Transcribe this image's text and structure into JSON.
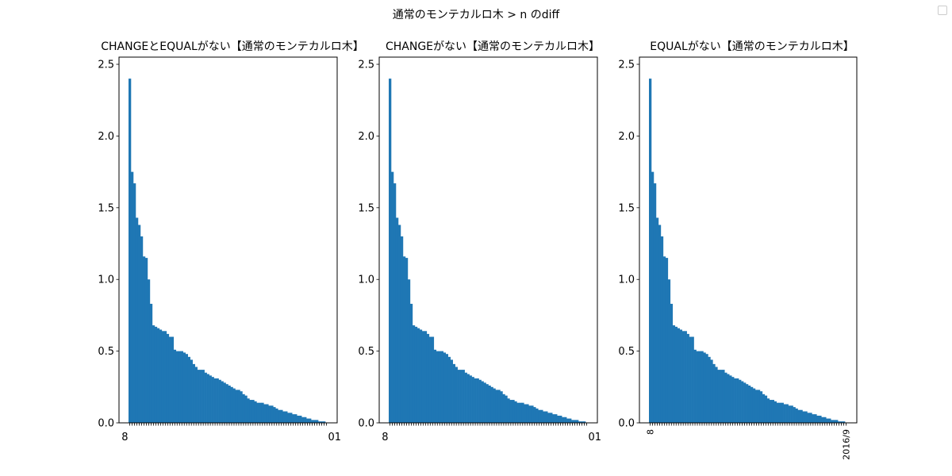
{
  "figure": {
    "suptitle": "通常のモンテカルロ木 > n のdiff",
    "bar_color": "#1f77b4"
  },
  "chart_data": [
    {
      "type": "bar",
      "title": "CHANGEとEQUALがない【通常のモンテカルロ木】",
      "xlabel": "",
      "ylabel": "",
      "ylim": [
        0,
        2.55
      ],
      "yticks": [
        "0.0",
        "0.5",
        "1.0",
        "1.5",
        "2.0",
        "2.5"
      ],
      "xtick_first": "8",
      "xtick_last": "01",
      "xtick_rotation": 0,
      "grid": false,
      "values": [
        2.4,
        1.75,
        1.67,
        1.43,
        1.38,
        1.3,
        1.16,
        1.15,
        1.0,
        0.83,
        0.68,
        0.67,
        0.66,
        0.65,
        0.64,
        0.64,
        0.62,
        0.6,
        0.6,
        0.51,
        0.5,
        0.5,
        0.5,
        0.49,
        0.48,
        0.46,
        0.44,
        0.41,
        0.39,
        0.37,
        0.37,
        0.37,
        0.35,
        0.34,
        0.33,
        0.32,
        0.31,
        0.31,
        0.3,
        0.29,
        0.28,
        0.27,
        0.26,
        0.25,
        0.24,
        0.23,
        0.23,
        0.22,
        0.2,
        0.19,
        0.17,
        0.16,
        0.16,
        0.15,
        0.14,
        0.14,
        0.14,
        0.13,
        0.13,
        0.12,
        0.12,
        0.11,
        0.1,
        0.09,
        0.09,
        0.08,
        0.08,
        0.07,
        0.07,
        0.06,
        0.06,
        0.05,
        0.05,
        0.04,
        0.04,
        0.03,
        0.03,
        0.02,
        0.02,
        0.02,
        0.01,
        0.01,
        0.01,
        0.0
      ]
    },
    {
      "type": "bar",
      "title": "CHANGEがない【通常のモンテカルロ木】",
      "xlabel": "",
      "ylabel": "",
      "ylim": [
        0,
        2.55
      ],
      "yticks": [
        "0.0",
        "0.5",
        "1.0",
        "1.5",
        "2.0",
        "2.5"
      ],
      "xtick_first": "8",
      "xtick_last": "01",
      "xtick_rotation": 0,
      "grid": false,
      "values": [
        2.4,
        1.75,
        1.67,
        1.43,
        1.38,
        1.3,
        1.16,
        1.15,
        1.0,
        0.83,
        0.68,
        0.67,
        0.66,
        0.65,
        0.64,
        0.64,
        0.62,
        0.6,
        0.6,
        0.51,
        0.5,
        0.5,
        0.5,
        0.49,
        0.48,
        0.46,
        0.44,
        0.41,
        0.39,
        0.37,
        0.37,
        0.37,
        0.35,
        0.34,
        0.33,
        0.32,
        0.31,
        0.31,
        0.3,
        0.29,
        0.28,
        0.27,
        0.26,
        0.25,
        0.24,
        0.23,
        0.23,
        0.22,
        0.2,
        0.19,
        0.17,
        0.16,
        0.16,
        0.15,
        0.14,
        0.14,
        0.14,
        0.13,
        0.13,
        0.12,
        0.12,
        0.11,
        0.1,
        0.09,
        0.09,
        0.08,
        0.08,
        0.07,
        0.07,
        0.06,
        0.06,
        0.05,
        0.05,
        0.04,
        0.04,
        0.03,
        0.03,
        0.02,
        0.02,
        0.02,
        0.01,
        0.01,
        0.01,
        0.0
      ]
    },
    {
      "type": "bar",
      "title": "EQUALがない【通常のモンテカルロ木】",
      "xlabel": "",
      "ylabel": "",
      "ylim": [
        0,
        2.55
      ],
      "yticks": [
        "0.0",
        "0.5",
        "1.0",
        "1.5",
        "2.0",
        "2.5"
      ],
      "xtick_first": "8",
      "xtick_last": "2016/9",
      "xtick_rotation": -90,
      "grid": false,
      "values": [
        2.4,
        1.75,
        1.67,
        1.43,
        1.38,
        1.3,
        1.16,
        1.15,
        1.0,
        0.83,
        0.68,
        0.67,
        0.66,
        0.65,
        0.64,
        0.64,
        0.62,
        0.6,
        0.6,
        0.51,
        0.5,
        0.5,
        0.5,
        0.49,
        0.48,
        0.46,
        0.44,
        0.41,
        0.39,
        0.37,
        0.37,
        0.37,
        0.35,
        0.34,
        0.33,
        0.32,
        0.31,
        0.31,
        0.3,
        0.29,
        0.28,
        0.27,
        0.26,
        0.25,
        0.24,
        0.23,
        0.23,
        0.22,
        0.2,
        0.19,
        0.17,
        0.16,
        0.16,
        0.15,
        0.14,
        0.14,
        0.14,
        0.13,
        0.13,
        0.12,
        0.12,
        0.11,
        0.1,
        0.09,
        0.09,
        0.08,
        0.08,
        0.07,
        0.07,
        0.06,
        0.06,
        0.05,
        0.05,
        0.04,
        0.04,
        0.03,
        0.03,
        0.02,
        0.02,
        0.02,
        0.01,
        0.01,
        0.01,
        0.0
      ]
    }
  ]
}
